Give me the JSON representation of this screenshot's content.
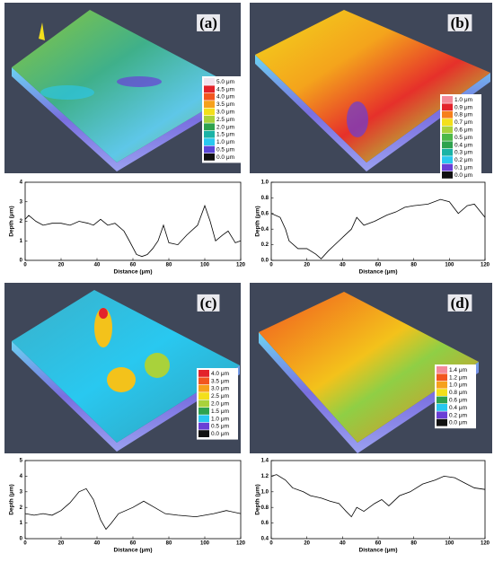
{
  "panels": [
    {
      "label": "(a)",
      "scale": [
        {
          "label": "5.0 μm",
          "color": "#f3e4ef"
        },
        {
          "label": "4.5 μm",
          "color": "#e3222b"
        },
        {
          "label": "4.0 μm",
          "color": "#f2561f"
        },
        {
          "label": "3.5 μm",
          "color": "#f6a11c"
        },
        {
          "label": "3.0 μm",
          "color": "#f3df1b"
        },
        {
          "label": "2.5 μm",
          "color": "#a9d23b"
        },
        {
          "label": "2.0 μm",
          "color": "#2ea24e"
        },
        {
          "label": "1.5 μm",
          "color": "#1ab3a6"
        },
        {
          "label": "1.0 μm",
          "color": "#29c8f0"
        },
        {
          "label": "0.5 μm",
          "color": "#5a46d6"
        },
        {
          "label": "0.0 μm",
          "color": "#111111"
        }
      ]
    },
    {
      "label": "(b)",
      "scale": [
        {
          "label": "1.0 μm",
          "color": "#f48a9a"
        },
        {
          "label": "0.9 μm",
          "color": "#e3222b"
        },
        {
          "label": "0.8 μm",
          "color": "#f6801c"
        },
        {
          "label": "0.7 μm",
          "color": "#f3df1b"
        },
        {
          "label": "0.6 μm",
          "color": "#a9d23b"
        },
        {
          "label": "0.5 μm",
          "color": "#4cb848"
        },
        {
          "label": "0.4 μm",
          "color": "#2ea24e"
        },
        {
          "label": "0.3 μm",
          "color": "#1ab3a6"
        },
        {
          "label": "0.2 μm",
          "color": "#29c8f0"
        },
        {
          "label": "0.1 μm",
          "color": "#6a3fd6"
        },
        {
          "label": "0.0 μm",
          "color": "#111111"
        }
      ]
    },
    {
      "label": "(c)",
      "scale": [
        {
          "label": "4.0 μm",
          "color": "#e3222b"
        },
        {
          "label": "3.5 μm",
          "color": "#f2561f"
        },
        {
          "label": "3.0 μm",
          "color": "#f6a11c"
        },
        {
          "label": "2.5 μm",
          "color": "#f3df1b"
        },
        {
          "label": "2.0 μm",
          "color": "#a9d23b"
        },
        {
          "label": "1.5 μm",
          "color": "#2ea24e"
        },
        {
          "label": "1.0 μm",
          "color": "#29c8f0"
        },
        {
          "label": "0.5 μm",
          "color": "#6a3fd6"
        },
        {
          "label": "0.0 μm",
          "color": "#111111"
        }
      ]
    },
    {
      "label": "(d)",
      "scale": [
        {
          "label": "1.4 μm",
          "color": "#f48a9a"
        },
        {
          "label": "1.2 μm",
          "color": "#f2561f"
        },
        {
          "label": "1.0 μm",
          "color": "#f6a11c"
        },
        {
          "label": "0.8 μm",
          "color": "#f3df1b"
        },
        {
          "label": "0.6 μm",
          "color": "#2ea24e"
        },
        {
          "label": "0.4 μm",
          "color": "#29c8f0"
        },
        {
          "label": "0.2 μm",
          "color": "#6a3fd6"
        },
        {
          "label": "0.0 μm",
          "color": "#111111"
        }
      ]
    }
  ],
  "chart_data": [
    {
      "type": "line",
      "xlabel": "Distance (μm)",
      "ylabel": "Depth (μm)",
      "color": "#000000",
      "x": [
        0,
        2,
        6,
        10,
        15,
        20,
        25,
        30,
        35,
        38,
        42,
        46,
        50,
        55,
        58,
        62,
        65,
        68,
        71,
        74,
        77,
        80,
        85,
        90,
        96,
        100,
        103,
        106,
        110,
        113,
        117,
        120
      ],
      "values": [
        2.1,
        2.3,
        2.0,
        1.8,
        1.9,
        1.9,
        1.8,
        2.0,
        1.9,
        1.8,
        2.1,
        1.8,
        1.9,
        1.5,
        1.0,
        0.3,
        0.2,
        0.3,
        0.6,
        1.0,
        1.8,
        0.9,
        0.8,
        1.3,
        1.8,
        2.8,
        2.0,
        1.0,
        1.3,
        1.5,
        0.9,
        1.0
      ],
      "xlim": [
        0,
        120
      ],
      "ylim": [
        0,
        4
      ],
      "xticks": [
        0,
        20,
        40,
        60,
        80,
        100,
        120
      ],
      "yticks": [
        0,
        1,
        2,
        3,
        4
      ]
    },
    {
      "type": "line",
      "xlabel": "Distance (μm)",
      "ylabel": "Depth (μm)",
      "color": "#000000",
      "x": [
        0,
        5,
        8,
        10,
        15,
        20,
        25,
        28,
        32,
        38,
        45,
        48,
        52,
        58,
        65,
        70,
        75,
        80,
        88,
        95,
        100,
        105,
        110,
        114,
        120
      ],
      "values": [
        0.6,
        0.55,
        0.4,
        0.25,
        0.15,
        0.15,
        0.08,
        0.02,
        0.12,
        0.25,
        0.4,
        0.55,
        0.45,
        0.5,
        0.58,
        0.62,
        0.68,
        0.7,
        0.72,
        0.78,
        0.75,
        0.6,
        0.7,
        0.72,
        0.55
      ],
      "xlim": [
        0,
        120
      ],
      "ylim": [
        0,
        1
      ],
      "xticks": [
        0,
        20,
        40,
        60,
        80,
        100,
        120
      ],
      "yticks": [
        {
          "value": 0,
          "label": "0.0"
        },
        0.2,
        0.4,
        0.6,
        0.8,
        {
          "value": 1,
          "label": "1.0"
        }
      ]
    },
    {
      "type": "line",
      "xlabel": "Distance (μm)",
      "ylabel": "Depth (μm)",
      "color": "#000000",
      "x": [
        0,
        5,
        10,
        15,
        20,
        25,
        30,
        34,
        38,
        42,
        45,
        48,
        52,
        60,
        66,
        72,
        78,
        85,
        95,
        105,
        112,
        120
      ],
      "values": [
        1.6,
        1.5,
        1.6,
        1.5,
        1.8,
        2.3,
        3.0,
        3.2,
        2.5,
        1.2,
        0.6,
        1.0,
        1.6,
        2.0,
        2.4,
        2.0,
        1.6,
        1.5,
        1.4,
        1.6,
        1.8,
        1.6
      ],
      "xlim": [
        0,
        120
      ],
      "ylim": [
        0,
        5
      ],
      "xticks": [
        0,
        20,
        40,
        60,
        80,
        100,
        120
      ],
      "yticks": [
        0,
        1,
        2,
        3,
        4,
        5
      ]
    },
    {
      "type": "line",
      "xlabel": "Distance (μm)",
      "ylabel": "Depth (μm)",
      "color": "#000000",
      "x": [
        0,
        3,
        8,
        12,
        18,
        22,
        28,
        33,
        38,
        42,
        45,
        48,
        52,
        58,
        62,
        66,
        72,
        78,
        85,
        92,
        97,
        103,
        108,
        114,
        120
      ],
      "values": [
        1.2,
        1.22,
        1.15,
        1.05,
        1.0,
        0.95,
        0.92,
        0.88,
        0.85,
        0.75,
        0.68,
        0.8,
        0.75,
        0.85,
        0.9,
        0.82,
        0.95,
        1.0,
        1.1,
        1.15,
        1.2,
        1.18,
        1.12,
        1.05,
        1.03
      ],
      "xlim": [
        0,
        120
      ],
      "ylim": [
        0.4,
        1.4
      ],
      "xticks": [
        0,
        20,
        40,
        60,
        80,
        100,
        120
      ],
      "yticks": [
        0.4,
        0.6,
        0.8,
        {
          "value": 1,
          "label": "1.0"
        },
        1.2,
        1.4
      ]
    }
  ]
}
